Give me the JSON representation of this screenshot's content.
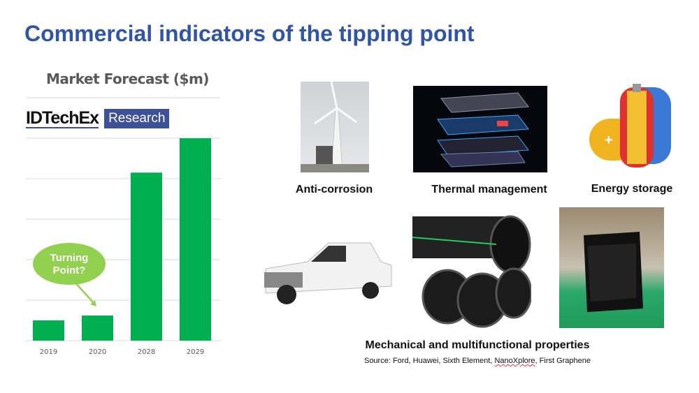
{
  "slide": {
    "title": "Commercial indicators of the tipping point",
    "labels": {
      "anti_corrosion": "Anti-corrosion",
      "thermal": "Thermal management",
      "energy": "Energy storage",
      "mechanical": "Mechanical and multifunctional properties"
    },
    "source_prefix": "Source: Ford, Huawei, Sixth Element, ",
    "source_underlined": "NanoXplore",
    "source_suffix": ", First Graphene",
    "logo": {
      "name": "IDTechEx",
      "tag": "Research"
    }
  },
  "chart_data": {
    "type": "bar",
    "title": "Market Forecast ($m)",
    "categories": [
      "2019",
      "2020",
      "2028",
      "2029"
    ],
    "values": [
      0.5,
      0.62,
      4.15,
      5.0
    ],
    "ylim": [
      0,
      6
    ],
    "grid": true,
    "bar_color": "#00B050",
    "annotation": {
      "text_line1": "Turning",
      "text_line2": "Point?",
      "target": "2020",
      "color": "#92D050"
    }
  },
  "colors": {
    "title": "#2F55A4",
    "bar": "#00B050",
    "bubble": "#92D050"
  }
}
